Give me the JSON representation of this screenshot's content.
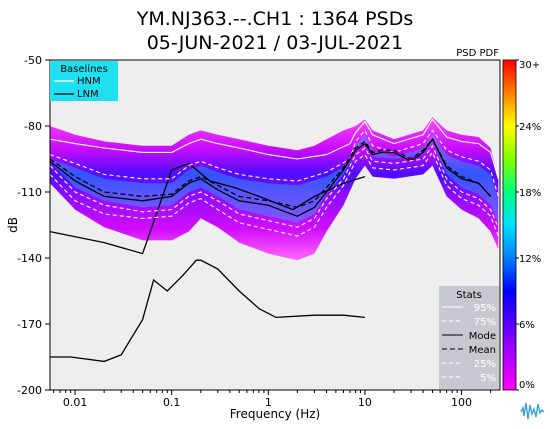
{
  "header": {
    "title_line1": "YM.NJ363.--.CH1 : 1364 PSDs",
    "title_line2": "05-JUN-2021 / 03-JUL-2021",
    "pdf_label": "PSD PDF"
  },
  "baselines_box": {
    "title": "Baselines",
    "items": [
      "HNM",
      "LNM"
    ]
  },
  "stats_box": {
    "title": "Stats",
    "items": [
      "95%",
      "75%",
      "Mode",
      "Mean",
      "25%",
      "5%"
    ]
  },
  "colorbar": {
    "stops": [
      "#ff00ff",
      "#b000ff",
      "#5a00ff",
      "#0000ff",
      "#0080ff",
      "#00e0ff",
      "#00ff80",
      "#80ff00",
      "#ffff00",
      "#ff8000",
      "#ff0000"
    ],
    "ticks": [
      "0%",
      "6%",
      "12%",
      "18%",
      "24%",
      "30+"
    ]
  },
  "chart_data": {
    "type": "line",
    "title": "YM.NJ363.--.CH1 : 1364 PSDs",
    "subtitle": "05-JUN-2021 / 03-JUL-2021",
    "xlabel": "Frequency (Hz)",
    "ylabel": "dB",
    "x_scale": "log",
    "xlim": [
      0.0055,
      250
    ],
    "ylim": [
      -200,
      -50
    ],
    "x_ticks": [
      {
        "value": 0.01,
        "label": "0.01"
      },
      {
        "value": 0.1,
        "label": "0.1"
      },
      {
        "value": 1,
        "label": "1"
      },
      {
        "value": 10,
        "label": "10"
      },
      {
        "value": 100,
        "label": "100"
      }
    ],
    "y_ticks": [
      {
        "value": -50,
        "label": "-50"
      },
      {
        "value": -80,
        "label": "-80"
      },
      {
        "value": -110,
        "label": "-110"
      },
      {
        "value": -140,
        "label": "-140"
      },
      {
        "value": -170,
        "label": "-170"
      },
      {
        "value": -200,
        "label": "-200"
      }
    ],
    "background": "#eeeeee",
    "series": [
      {
        "name": "HNM",
        "color": "#000000",
        "dash": "",
        "x": [
          0.0055,
          0.02,
          0.05,
          0.1,
          0.15,
          0.25,
          0.45,
          0.8,
          1.8,
          3,
          6,
          10
        ],
        "y": [
          -128,
          -133,
          -138,
          -100,
          -97,
          -105,
          -108,
          -112,
          -118,
          -112,
          -106,
          -103
        ]
      },
      {
        "name": "LNM",
        "color": "#000000",
        "dash": "",
        "x": [
          0.0055,
          0.009,
          0.02,
          0.03,
          0.05,
          0.065,
          0.09,
          0.13,
          0.18,
          0.2,
          0.3,
          0.5,
          0.8,
          1.2,
          3,
          6,
          10
        ],
        "y": [
          -185,
          -185,
          -187,
          -184,
          -168,
          -150,
          -155,
          -148,
          -141,
          -141,
          -145,
          -155,
          -163,
          -167,
          -166,
          -166,
          -167
        ]
      },
      {
        "name": "95%",
        "color": "#ffffff",
        "dash": "",
        "x": [
          0.0055,
          0.01,
          0.02,
          0.05,
          0.1,
          0.15,
          0.2,
          0.3,
          0.5,
          1,
          2,
          4,
          7,
          8,
          10,
          12,
          20,
          40,
          50,
          70,
          100,
          150,
          200,
          240
        ],
        "y": [
          -86,
          -88,
          -90,
          -92,
          -92,
          -88,
          -86,
          -88,
          -90,
          -93,
          -95,
          -93,
          -88,
          -83,
          -78,
          -84,
          -88,
          -84,
          -77,
          -85,
          -87,
          -88,
          -92,
          -104
        ]
      },
      {
        "name": "75%",
        "color": "#ffffff",
        "dash": "4 3",
        "x": [
          0.0055,
          0.01,
          0.02,
          0.05,
          0.1,
          0.15,
          0.2,
          0.3,
          0.5,
          1,
          2,
          4,
          7,
          8,
          10,
          12,
          20,
          40,
          50,
          70,
          100,
          150,
          200,
          240
        ],
        "y": [
          -93,
          -97,
          -102,
          -104,
          -104,
          -98,
          -96,
          -99,
          -102,
          -104,
          -105,
          -101,
          -95,
          -87,
          -82,
          -89,
          -92,
          -88,
          -82,
          -91,
          -94,
          -96,
          -100,
          -112
        ]
      },
      {
        "name": "Mode",
        "color": "#000000",
        "dash": "",
        "x": [
          0.0055,
          0.01,
          0.02,
          0.05,
          0.1,
          0.15,
          0.2,
          0.3,
          0.5,
          1,
          1.5,
          2,
          3,
          4,
          6,
          8,
          10,
          12,
          15,
          20,
          30,
          40,
          50,
          70,
          100,
          150,
          200
        ],
        "y": [
          -96,
          -105,
          -112,
          -114,
          -112,
          -106,
          -104,
          -109,
          -114,
          -116,
          -119,
          -121,
          -117,
          -110,
          -100,
          -91,
          -88,
          -93,
          -92,
          -92,
          -96,
          -92,
          -86,
          -99,
          -104,
          -106,
          -112
        ]
      },
      {
        "name": "Mean",
        "color": "#000000",
        "dash": "5 3",
        "x": [
          0.0055,
          0.01,
          0.02,
          0.05,
          0.1,
          0.15,
          0.2,
          0.3,
          0.5,
          1,
          2,
          3,
          4,
          6,
          8,
          10,
          12,
          15,
          20,
          30,
          40,
          50,
          70,
          100,
          150,
          200
        ],
        "y": [
          -95,
          -103,
          -110,
          -112,
          -111,
          -105,
          -103,
          -107,
          -112,
          -114,
          -117,
          -114,
          -108,
          -99,
          -90,
          -87,
          -92,
          -91,
          -91,
          -95,
          -91,
          -86,
          -98,
          -103,
          -106,
          -112
        ]
      },
      {
        "name": "25%",
        "color": "#ffffff",
        "dash": "4 3",
        "x": [
          0.0055,
          0.01,
          0.02,
          0.05,
          0.1,
          0.15,
          0.2,
          0.3,
          0.5,
          1,
          2,
          3,
          4,
          6,
          8,
          10,
          12,
          20,
          40,
          50,
          70,
          100,
          150,
          200,
          240
        ],
        "y": [
          -98,
          -110,
          -116,
          -119,
          -118,
          -112,
          -110,
          -114,
          -120,
          -123,
          -126,
          -122,
          -113,
          -104,
          -93,
          -90,
          -96,
          -97,
          -95,
          -89,
          -104,
          -110,
          -113,
          -118,
          -126
        ]
      },
      {
        "name": "5%",
        "color": "#ffffff",
        "dash": "4 3",
        "x": [
          0.0055,
          0.01,
          0.02,
          0.05,
          0.1,
          0.15,
          0.2,
          0.3,
          0.5,
          1,
          2,
          3,
          4,
          6,
          8,
          10,
          12,
          20,
          40,
          50,
          70,
          100,
          150,
          200,
          240
        ],
        "y": [
          -102,
          -114,
          -120,
          -122,
          -121,
          -115,
          -113,
          -118,
          -124,
          -127,
          -130,
          -126,
          -117,
          -107,
          -96,
          -93,
          -99,
          -100,
          -98,
          -92,
          -107,
          -113,
          -116,
          -121,
          -130
        ]
      }
    ],
    "density_band": {
      "x": [
        0.0055,
        0.01,
        0.02,
        0.05,
        0.1,
        0.15,
        0.2,
        0.3,
        0.5,
        1,
        2,
        3,
        4,
        6,
        8,
        10,
        12,
        20,
        40,
        50,
        70,
        100,
        150,
        200,
        240
      ],
      "upper": [
        -80,
        -84,
        -87,
        -89,
        -89,
        -84,
        -82,
        -84,
        -86,
        -89,
        -91,
        -89,
        -86,
        -82,
        -80,
        -77,
        -82,
        -86,
        -82,
        -76,
        -82,
        -84,
        -85,
        -90,
        -104
      ],
      "lower": [
        -106,
        -118,
        -126,
        -132,
        -132,
        -128,
        -122,
        -126,
        -133,
        -138,
        -141,
        -138,
        -128,
        -116,
        -104,
        -98,
        -103,
        -104,
        -102,
        -98,
        -112,
        -118,
        -122,
        -128,
        -136
      ]
    }
  }
}
